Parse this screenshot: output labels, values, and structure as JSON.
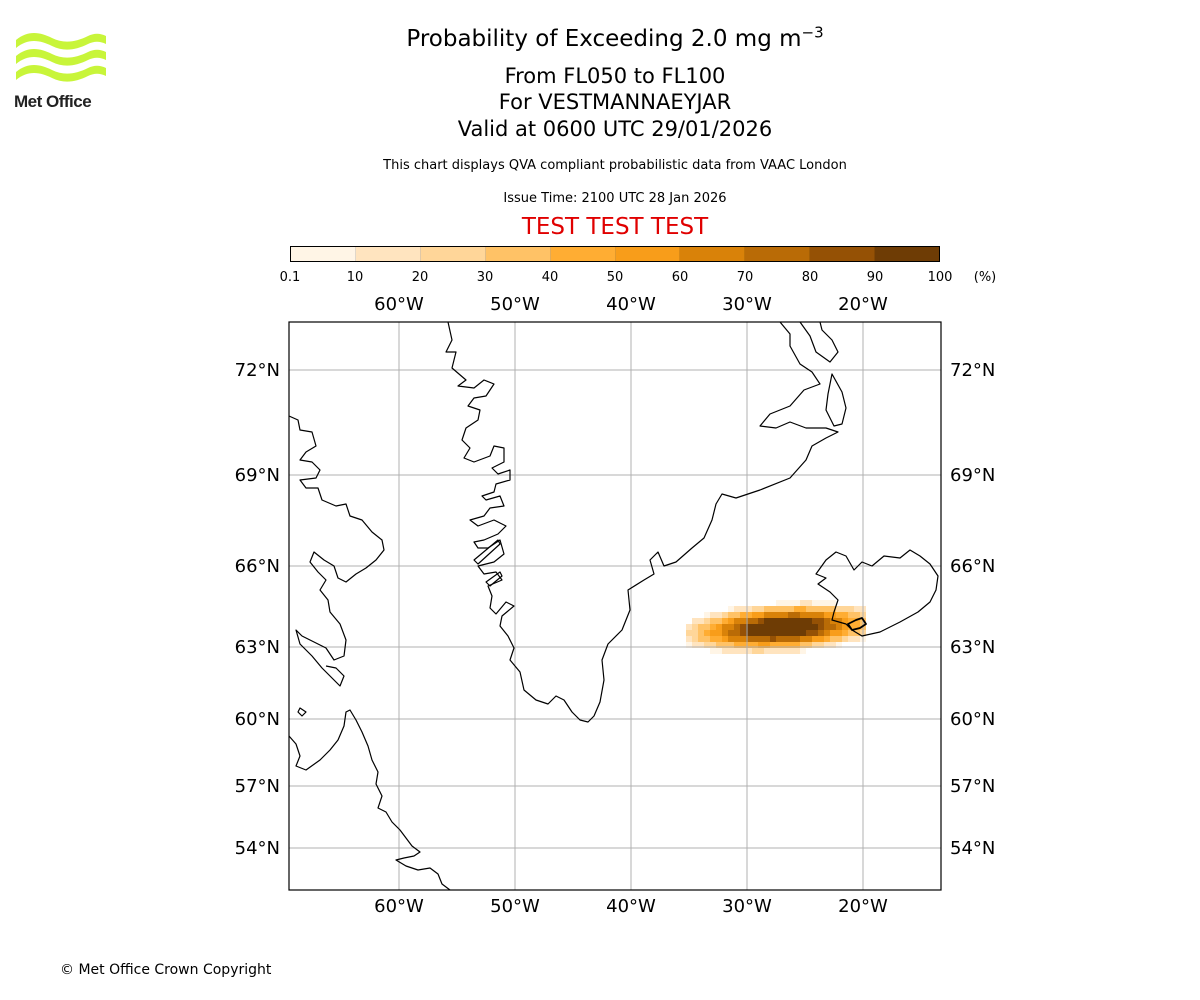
{
  "header": {
    "title_main": "Probability of Exceeding 2.0 mg m",
    "title_exponent": "−3",
    "title_levels": "From FL050 to FL100",
    "title_location": "For VESTMANNAEYJAR",
    "title_valid": "Valid at 0600 UTC 29/01/2026",
    "subtitle": "This chart displays QVA compliant probabilistic data from VAAC London",
    "issue_time": "Issue Time: 2100 UTC 28 Jan 2026",
    "test_banner": "TEST TEST TEST"
  },
  "logo": {
    "text": "Met Office",
    "color": "#c8f53a"
  },
  "colorbar": {
    "tick_labels": [
      "0.1",
      "10",
      "20",
      "30",
      "40",
      "50",
      "60",
      "70",
      "80",
      "90",
      "100"
    ],
    "colors": [
      "#fff5e6",
      "#ffe4bf",
      "#ffd699",
      "#ffc266",
      "#ffad33",
      "#f89d1a",
      "#d98209",
      "#b96b06",
      "#955105",
      "#6e3c05"
    ],
    "unit": "(%)"
  },
  "map": {
    "longitude_labels": [
      "60°W",
      "50°W",
      "40°W",
      "30°W",
      "20°W"
    ],
    "latitude_labels": [
      "72°N",
      "69°N",
      "66°N",
      "63°N",
      "60°N",
      "57°N",
      "54°N"
    ],
    "grid_color": "#b0b0b0"
  },
  "footer": {
    "copyright": "© Met Office Crown Copyright"
  }
}
